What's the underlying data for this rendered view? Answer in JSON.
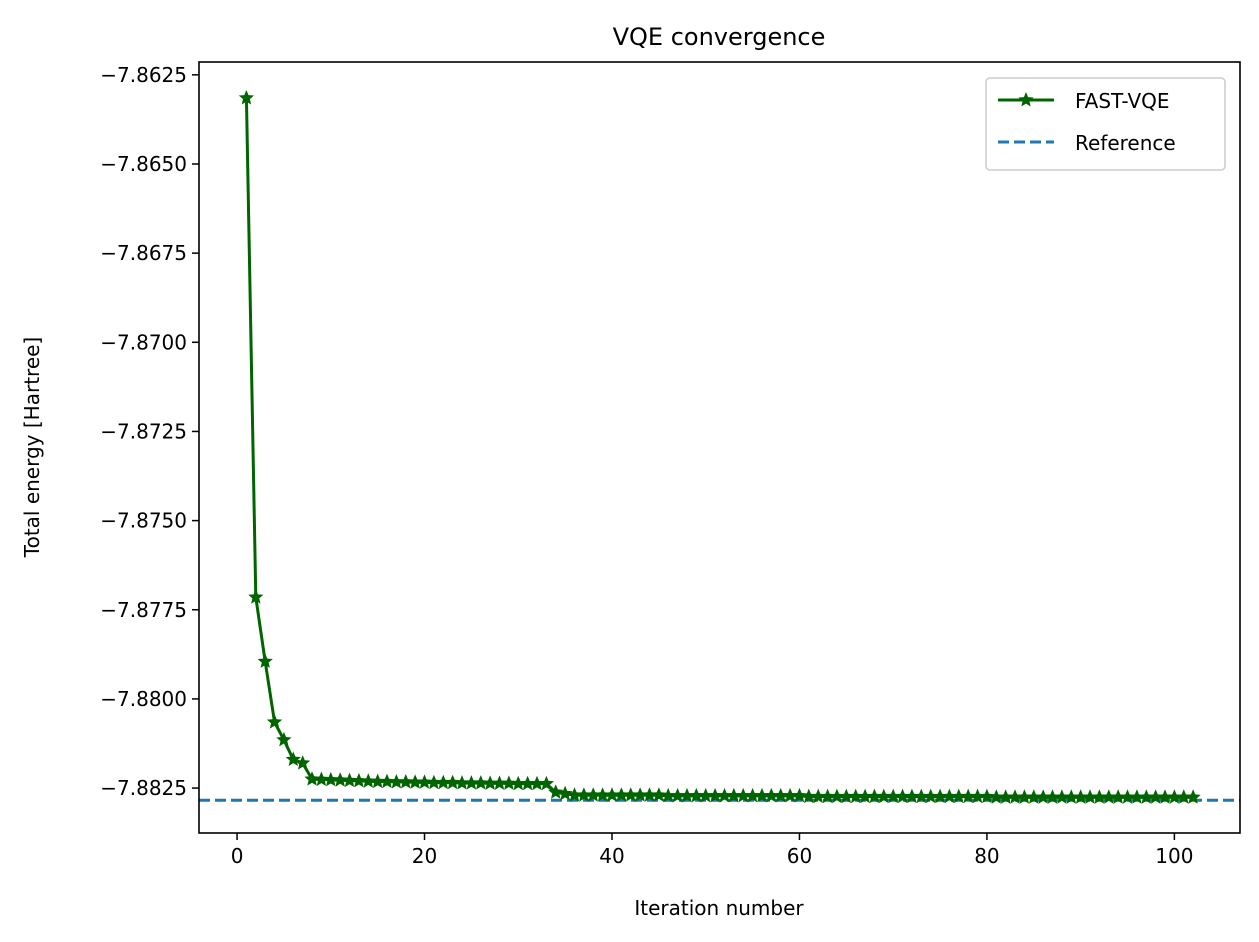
{
  "chart_data": {
    "type": "line",
    "title": "VQE convergence",
    "xlabel": "Iteration number",
    "ylabel": "Total energy [Hartree]",
    "xlim": [
      -4.06,
      107.0
    ],
    "ylim": [
      -7.88376,
      -7.86214
    ],
    "xticks": [
      0,
      20,
      40,
      60,
      80,
      100
    ],
    "xtick_labels": [
      "0",
      "20",
      "40",
      "60",
      "80",
      "100"
    ],
    "yticks": [
      -7.8625,
      -7.865,
      -7.8675,
      -7.87,
      -7.8725,
      -7.875,
      -7.8775,
      -7.88,
      -7.8825
    ],
    "ytick_labels": [
      "−7.8625",
      "−7.8650",
      "−7.8675",
      "−7.8700",
      "−7.8725",
      "−7.8750",
      "−7.8775",
      "−7.8800",
      "−7.8825"
    ],
    "grid": false,
    "legend_placement": "upper-right",
    "series": [
      {
        "name": "FAST-VQE",
        "color": "#006400",
        "marker": "star",
        "x_start": 1,
        "values": [
          -7.86315,
          -7.87715,
          -7.87895,
          -7.88065,
          -7.88115,
          -7.8817,
          -7.8818,
          -7.88225,
          -7.88226,
          -7.88227,
          -7.88228,
          -7.88229,
          -7.8823,
          -7.88231,
          -7.88232,
          -7.88232,
          -7.88233,
          -7.88233,
          -7.88234,
          -7.88234,
          -7.88235,
          -7.88235,
          -7.88235,
          -7.88236,
          -7.88236,
          -7.88236,
          -7.88237,
          -7.88237,
          -7.88237,
          -7.88238,
          -7.88238,
          -7.88238,
          -7.88238,
          -7.88262,
          -7.88266,
          -7.8827,
          -7.8827,
          -7.8827,
          -7.8827,
          -7.8827,
          -7.8827,
          -7.8827,
          -7.8827,
          -7.8827,
          -7.8827,
          -7.88272,
          -7.88272,
          -7.88272,
          -7.88272,
          -7.88272,
          -7.88272,
          -7.88272,
          -7.88272,
          -7.88272,
          -7.88272,
          -7.88272,
          -7.88272,
          -7.88272,
          -7.88272,
          -7.88272,
          -7.88274,
          -7.88274,
          -7.88274,
          -7.88274,
          -7.88274,
          -7.88274,
          -7.88274,
          -7.88274,
          -7.88274,
          -7.88274,
          -7.88274,
          -7.88274,
          -7.88274,
          -7.88274,
          -7.88274,
          -7.88274,
          -7.88274,
          -7.88274,
          -7.88274,
          -7.88274,
          -7.88276,
          -7.88276,
          -7.88276,
          -7.88276,
          -7.88276,
          -7.88276,
          -7.88276,
          -7.88276,
          -7.88276,
          -7.88276,
          -7.88276,
          -7.88276,
          -7.88276,
          -7.88276,
          -7.88276,
          -7.88276,
          -7.88276,
          -7.88276,
          -7.88276,
          -7.88276,
          -7.88276,
          -7.88276
        ]
      },
      {
        "name": "Reference",
        "color": "#1f77b4",
        "style": "dashed",
        "hline": -7.88284
      }
    ]
  }
}
